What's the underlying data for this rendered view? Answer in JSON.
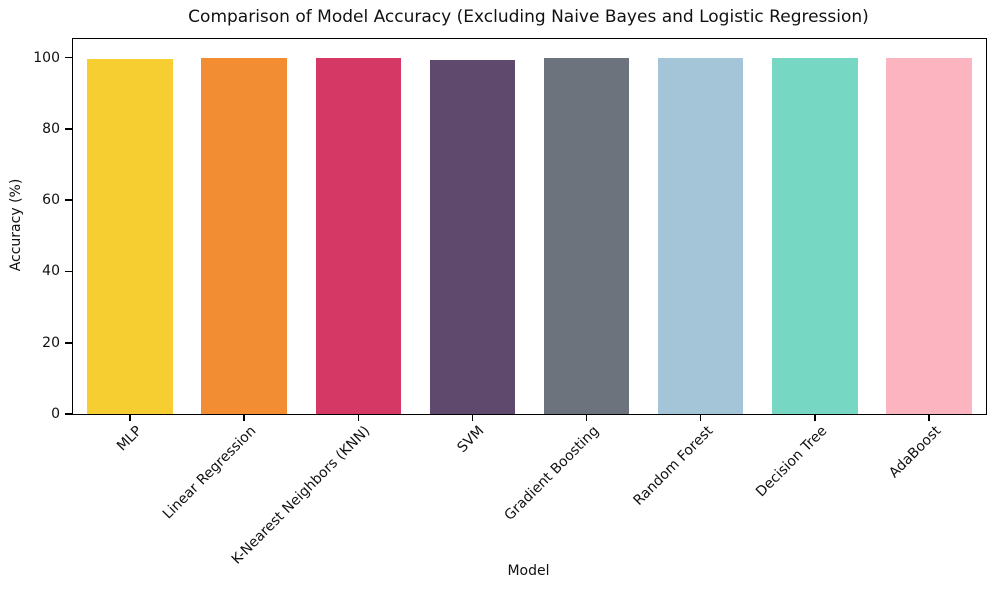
{
  "chart_data": {
    "type": "bar",
    "title": "Comparison of Model Accuracy (Excluding Naive Bayes and Logistic Regression)",
    "xlabel": "Model",
    "ylabel": "Accuracy (%)",
    "categories": [
      "MLP",
      "Linear Regression",
      "K-Nearest Neighbors (KNN)",
      "SVM",
      "Gradient Boosting",
      "Random Forest",
      "Decision Tree",
      "AdaBoost"
    ],
    "values": [
      99.5,
      99.9,
      100,
      99.2,
      100,
      100,
      100,
      100
    ],
    "bar_colors": [
      "#F7CE32",
      "#F28D33",
      "#D63865",
      "#5F4A6E",
      "#6D737D",
      "#A4C5D7",
      "#76D7C3",
      "#FBB4C0"
    ],
    "ylim": [
      0,
      105.2
    ],
    "yticks": [
      0,
      20,
      40,
      60,
      80,
      100
    ],
    "grid": false,
    "legend_position": "none",
    "xticklabel_rotation_deg": 45,
    "axis_color": "#000000",
    "background_color": "#ffffff"
  }
}
